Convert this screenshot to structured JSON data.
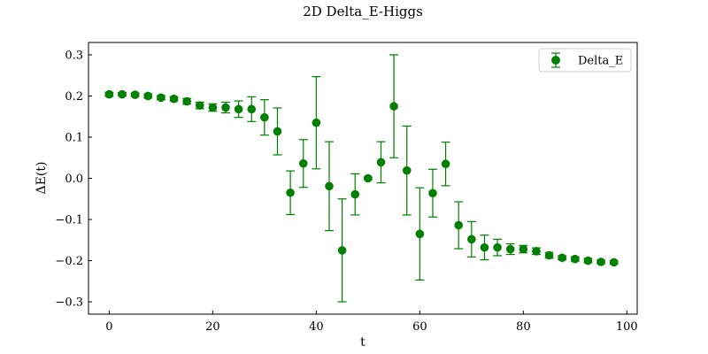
{
  "chart_data": {
    "type": "scatter",
    "title": "2D Delta_E-Higgs",
    "xlabel": "t",
    "ylabel": "ΔE(t)",
    "xlim": [
      -4,
      102
    ],
    "ylim": [
      -0.33,
      0.33
    ],
    "xticks": [
      0,
      20,
      40,
      60,
      80,
      100
    ],
    "yticks": [
      -0.3,
      -0.2,
      -0.1,
      0.0,
      0.1,
      0.2,
      0.3
    ],
    "tick_labels_x": [
      "0",
      "20",
      "40",
      "60",
      "80",
      "100"
    ],
    "tick_labels_y": [
      "−0.3",
      "−0.2",
      "−0.1",
      "0.0",
      "0.1",
      "0.2",
      "0.3"
    ],
    "grid": false,
    "legend": {
      "position": "top-right",
      "entries": [
        "Delta_E"
      ]
    },
    "series": [
      {
        "name": "Delta_E",
        "color": "#008000",
        "x": [
          0,
          2.5,
          5,
          7.5,
          10,
          12.5,
          15,
          17.5,
          20,
          22.5,
          25,
          27.5,
          30,
          32.5,
          35,
          37.5,
          40,
          42.5,
          45,
          47.5,
          50,
          52.5,
          55,
          57.5,
          60,
          62.5,
          65,
          67.5,
          70,
          72.5,
          75,
          77.5,
          80,
          82.5,
          85,
          87.5,
          90,
          92.5,
          95,
          97.5
        ],
        "y": [
          0.204,
          0.204,
          0.203,
          0.2,
          0.196,
          0.193,
          0.187,
          0.177,
          0.172,
          0.172,
          0.168,
          0.168,
          0.148,
          0.114,
          -0.035,
          0.036,
          0.135,
          -0.019,
          -0.175,
          -0.039,
          0.0,
          0.039,
          0.175,
          0.019,
          -0.135,
          -0.036,
          0.035,
          -0.114,
          -0.148,
          -0.168,
          -0.168,
          -0.172,
          -0.172,
          -0.177,
          -0.187,
          -0.193,
          -0.196,
          -0.2,
          -0.203,
          -0.204
        ],
        "yerr": [
          0.005,
          0.004,
          0.004,
          0.005,
          0.005,
          0.005,
          0.007,
          0.008,
          0.009,
          0.013,
          0.02,
          0.03,
          0.043,
          0.057,
          0.053,
          0.058,
          0.112,
          0.108,
          0.125,
          0.05,
          0.003,
          0.05,
          0.125,
          0.108,
          0.112,
          0.058,
          0.053,
          0.057,
          0.043,
          0.03,
          0.02,
          0.013,
          0.009,
          0.008,
          0.007,
          0.005,
          0.005,
          0.005,
          0.004,
          0.004
        ]
      }
    ]
  }
}
